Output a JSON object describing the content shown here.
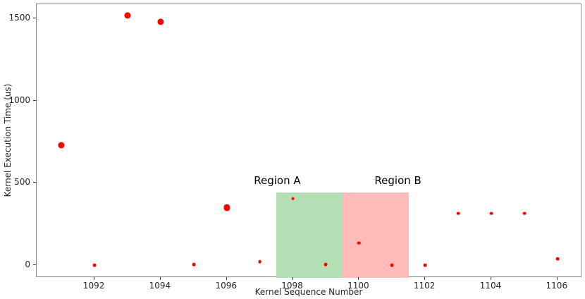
{
  "chart_data": {
    "type": "scatter",
    "title": "",
    "xlabel": "Kernel Sequence Number",
    "ylabel": "Kernel Execution Time (us)",
    "xlim": [
      1090.25,
      1106.75
    ],
    "ylim": [
      -77,
      1587
    ],
    "xticks": [
      1092,
      1094,
      1096,
      1098,
      1100,
      1102,
      1104,
      1106
    ],
    "yticks": [
      0,
      500,
      1000,
      1500
    ],
    "grid": false,
    "legend": false,
    "marker_color": "#ff0000",
    "points": [
      {
        "x": 1091,
        "y": 730,
        "size": "large"
      },
      {
        "x": 1092,
        "y": 0,
        "size": "small"
      },
      {
        "x": 1093,
        "y": 1520,
        "size": "large"
      },
      {
        "x": 1094,
        "y": 1480,
        "size": "large"
      },
      {
        "x": 1095,
        "y": 5,
        "size": "small"
      },
      {
        "x": 1096,
        "y": 350,
        "size": "large"
      },
      {
        "x": 1097,
        "y": 20,
        "size": "small"
      },
      {
        "x": 1098,
        "y": 405,
        "size": "small"
      },
      {
        "x": 1099,
        "y": 5,
        "size": "small"
      },
      {
        "x": 1100,
        "y": 135,
        "size": "small"
      },
      {
        "x": 1101,
        "y": 0,
        "size": "small"
      },
      {
        "x": 1102,
        "y": 0,
        "size": "small"
      },
      {
        "x": 1103,
        "y": 315,
        "size": "small"
      },
      {
        "x": 1104,
        "y": 315,
        "size": "small"
      },
      {
        "x": 1105,
        "y": 315,
        "size": "small"
      },
      {
        "x": 1106,
        "y": 40,
        "size": "small"
      }
    ],
    "regions": [
      {
        "label": "Region A",
        "x0": 1097.5,
        "x1": 1099.5,
        "y_top": 440,
        "color": "#b4dfb4",
        "label_x": 1097.55,
        "label_y": 510
      },
      {
        "label": "Region B",
        "x0": 1099.5,
        "x1": 1101.5,
        "y_top": 440,
        "color": "#ffbaba",
        "label_x": 1101.2,
        "label_y": 510
      }
    ]
  }
}
